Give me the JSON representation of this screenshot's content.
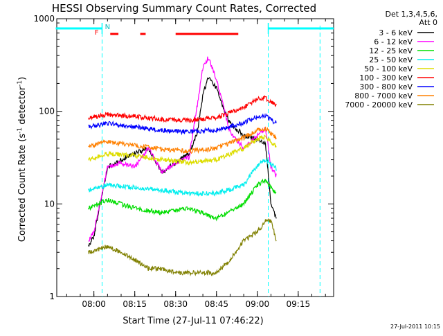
{
  "chart_data": {
    "type": "line",
    "title": "HESSI Observing Summary Count Rates, Corrected",
    "xlabel": "Start Time (27-Jul-11 07:46:22)",
    "ylabel": "Corrected Count Rate (s",
    "ylabel_sup1": "-1",
    "ylabel_mid": " detector",
    "ylabel_sup2": "-1",
    "ylabel_end": ")",
    "timestamp": "27-Jul-2011 10:15",
    "y_scale": "log",
    "ylim": [
      1,
      1000
    ],
    "xlim": [
      "07:46:22",
      "09:28:00"
    ],
    "x_ticks": [
      "08:00",
      "08:15",
      "08:30",
      "08:45",
      "09:00",
      "09:15"
    ],
    "y_ticks": [
      "1",
      "10",
      "100",
      "1000"
    ],
    "legend": {
      "placement": "right",
      "header1": "Det 1,3,4,5,6,",
      "header2": "Att 0"
    },
    "flags": {
      "f_label": "F",
      "n_label": "N"
    },
    "series": [
      {
        "name": "3 - 6 keV",
        "color": "#000000",
        "x": [
          "07:58",
          "08:00",
          "08:05",
          "08:10",
          "08:15",
          "08:20",
          "08:25",
          "08:30",
          "08:35",
          "08:38",
          "08:40",
          "08:42",
          "08:45",
          "08:48",
          "08:50",
          "08:55",
          "09:00",
          "09:03",
          "09:05",
          "09:07"
        ],
        "values": [
          3.5,
          4.5,
          25,
          30,
          35,
          40,
          22,
          28,
          35,
          60,
          150,
          230,
          180,
          100,
          75,
          55,
          50,
          45,
          10,
          7
        ]
      },
      {
        "name": "6 - 12 keV",
        "color": "#ff00ff",
        "x": [
          "07:58",
          "08:00",
          "08:05",
          "08:10",
          "08:15",
          "08:20",
          "08:25",
          "08:30",
          "08:35",
          "08:38",
          "08:40",
          "08:42",
          "08:45",
          "08:48",
          "08:50",
          "08:55",
          "09:00",
          "09:03",
          "09:05",
          "09:07"
        ],
        "values": [
          4,
          5,
          25,
          28,
          25,
          40,
          22,
          28,
          32,
          120,
          300,
          380,
          220,
          100,
          60,
          40,
          55,
          65,
          25,
          20
        ]
      },
      {
        "name": "12 - 25 keV",
        "color": "#00dd00",
        "x": [
          "07:58",
          "08:05",
          "08:15",
          "08:25",
          "08:35",
          "08:45",
          "08:55",
          "09:00",
          "09:03",
          "09:05",
          "09:07"
        ],
        "values": [
          9,
          11,
          9,
          8,
          9,
          7,
          10,
          16,
          18,
          15,
          13
        ]
      },
      {
        "name": "25 - 50 keV",
        "color": "#00eeee",
        "x": [
          "07:58",
          "08:05",
          "08:15",
          "08:25",
          "08:35",
          "08:45",
          "08:55",
          "09:00",
          "09:03",
          "09:05",
          "09:07"
        ],
        "values": [
          14,
          16,
          15,
          14,
          13,
          13,
          16,
          26,
          30,
          27,
          24
        ]
      },
      {
        "name": "50 - 100 keV",
        "color": "#dddd00",
        "x": [
          "07:58",
          "08:05",
          "08:15",
          "08:25",
          "08:35",
          "08:45",
          "08:55",
          "09:00",
          "09:03",
          "09:05",
          "09:07"
        ],
        "values": [
          30,
          35,
          33,
          30,
          28,
          30,
          40,
          50,
          53,
          47,
          42
        ]
      },
      {
        "name": "100 - 300 keV",
        "color": "#ff0000",
        "x": [
          "07:58",
          "08:05",
          "08:15",
          "08:25",
          "08:35",
          "08:45",
          "08:55",
          "09:00",
          "09:03",
          "09:05",
          "09:07"
        ],
        "values": [
          85,
          92,
          88,
          82,
          80,
          85,
          110,
          135,
          140,
          125,
          115
        ]
      },
      {
        "name": "300 - 800 keV",
        "color": "#0000ff",
        "x": [
          "07:58",
          "08:05",
          "08:15",
          "08:25",
          "08:35",
          "08:45",
          "08:55",
          "09:00",
          "09:03",
          "09:05",
          "09:07"
        ],
        "values": [
          68,
          74,
          68,
          62,
          60,
          63,
          75,
          88,
          90,
          80,
          75
        ]
      },
      {
        "name": "800 - 7000 keV",
        "color": "#ff8000",
        "x": [
          "07:58",
          "08:05",
          "08:15",
          "08:25",
          "08:35",
          "08:45",
          "08:55",
          "09:00",
          "09:03",
          "09:05",
          "09:07"
        ],
        "values": [
          42,
          47,
          43,
          39,
          37,
          40,
          52,
          63,
          65,
          58,
          52
        ]
      },
      {
        "name": "7000 - 20000 keV",
        "color": "#808000",
        "x": [
          "07:58",
          "08:05",
          "08:10",
          "08:15",
          "08:20",
          "08:25",
          "08:30",
          "08:35",
          "08:40",
          "08:45",
          "08:50",
          "08:55",
          "09:00",
          "09:03",
          "09:05",
          "09:07"
        ],
        "values": [
          3,
          3.5,
          3,
          2.5,
          2,
          2,
          1.8,
          1.8,
          1.8,
          1.8,
          2.5,
          4,
          5,
          6.5,
          6.5,
          4
        ]
      }
    ],
    "saa_bars": {
      "color": "#00ffff",
      "segments": [
        [
          "07:46",
          "08:03"
        ],
        [
          "09:04",
          "09:28"
        ]
      ],
      "markers": [
        "08:03",
        "09:04"
      ]
    },
    "flare_bars": {
      "color": "#ff0000",
      "segments": [
        [
          "08:06",
          "08:09"
        ],
        [
          "08:17",
          "08:19"
        ],
        [
          "08:30",
          "08:53"
        ]
      ]
    },
    "night_markers": {
      "color": "#00ffff",
      "times": [
        "08:03",
        "09:04",
        "09:23"
      ]
    }
  }
}
